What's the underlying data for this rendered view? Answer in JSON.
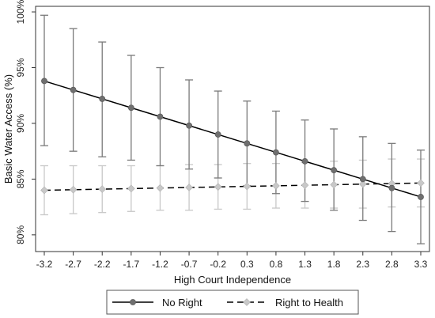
{
  "chart_data": {
    "type": "line",
    "xlabel": "High Court Independence",
    "ylabel": "Basic Water Access (%)",
    "x": [
      -3.2,
      -2.7,
      -2.2,
      -1.7,
      -1.2,
      -0.7,
      -0.2,
      0.3,
      0.8,
      1.3,
      1.8,
      2.3,
      2.8,
      3.3
    ],
    "x_tick_labels": [
      "-3.2",
      "-2.7",
      "-2.2",
      "-1.7",
      "-1.2",
      "-0.7",
      "-0.2",
      "0.3",
      "0.8",
      "1.3",
      "1.8",
      "2.3",
      "2.8",
      "3.3"
    ],
    "y_ticks": [
      80,
      85,
      90,
      95,
      100
    ],
    "y_tick_labels": [
      "80%",
      "85%",
      "90%",
      "95%",
      "100%"
    ],
    "ylim": [
      78.5,
      100.5
    ],
    "grid": false,
    "legend_position": "bottom",
    "series": [
      {
        "name": "No Right",
        "color": "#000000",
        "marker_color": "#6f6f6f",
        "ci_color": "#7a7a7a",
        "line_style": "solid",
        "values": [
          93.8,
          93.0,
          92.2,
          91.4,
          90.6,
          89.8,
          89.0,
          88.2,
          87.4,
          86.6,
          85.8,
          85.0,
          84.2,
          83.4
        ],
        "lower": [
          88.0,
          87.5,
          87.0,
          86.7,
          86.2,
          85.9,
          85.1,
          84.4,
          83.7,
          83.0,
          82.2,
          81.3,
          80.3,
          79.2
        ],
        "upper": [
          99.7,
          98.5,
          97.3,
          96.1,
          95.0,
          93.9,
          92.9,
          92.0,
          91.1,
          90.3,
          89.5,
          88.8,
          88.2,
          87.6
        ]
      },
      {
        "name": "Right to Health",
        "color": "#000000",
        "marker_color": "#c8c8c8",
        "ci_color": "#c8c8c8",
        "line_style": "dashed",
        "values": [
          84.0,
          84.05,
          84.1,
          84.15,
          84.2,
          84.25,
          84.3,
          84.35,
          84.4,
          84.45,
          84.5,
          84.55,
          84.6,
          84.65
        ],
        "lower": [
          81.8,
          81.9,
          82.0,
          82.1,
          82.2,
          82.2,
          82.3,
          82.3,
          82.4,
          82.4,
          82.4,
          82.4,
          82.5,
          82.5
        ],
        "upper": [
          86.2,
          86.2,
          86.2,
          86.2,
          86.2,
          86.3,
          86.3,
          86.4,
          86.4,
          86.5,
          86.6,
          86.7,
          86.8,
          86.8
        ]
      }
    ]
  }
}
